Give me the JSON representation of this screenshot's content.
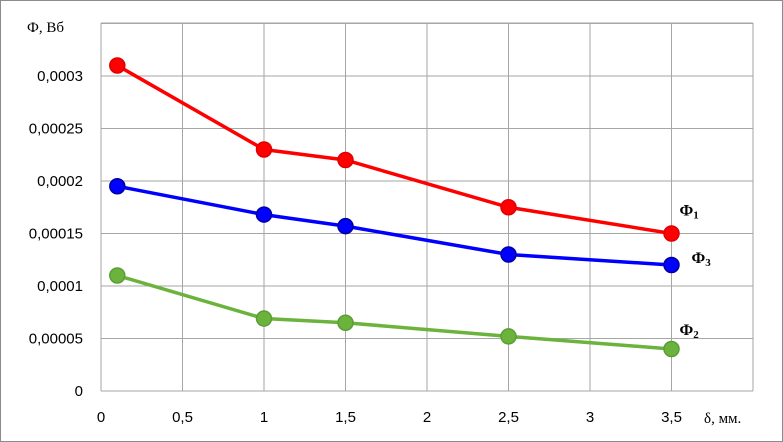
{
  "chart_data": {
    "type": "line",
    "ylabel": "Ф, Вб",
    "xlabel": "δ, мм.",
    "xlim": [
      0,
      4
    ],
    "ylim": [
      0,
      0.0003
    ],
    "x_ticks": [
      "0",
      "0,5",
      "1",
      "1,5",
      "2",
      "2,5",
      "3",
      "3,5"
    ],
    "y_ticks": [
      "0",
      "0,00005",
      "0,0001",
      "0,00015",
      "0,0002",
      "0,00025",
      "0,0003"
    ],
    "grid": true,
    "series": [
      {
        "name": "Ф1",
        "label_main": "Ф",
        "label_sub": "1",
        "color": "#ff0000",
        "marker_color": "#e00000",
        "x": [
          0.1,
          1,
          1.5,
          2.5,
          3.5
        ],
        "values": [
          0.00031,
          0.00023,
          0.00022,
          0.000175,
          0.00015
        ]
      },
      {
        "name": "Ф3",
        "label_main": "Ф",
        "label_sub": "3",
        "color": "#0000ff",
        "marker_color": "#0000a0",
        "x": [
          0.1,
          1,
          1.5,
          2.5,
          3.5
        ],
        "values": [
          0.000195,
          0.000168,
          0.000157,
          0.00013,
          0.00012
        ]
      },
      {
        "name": "Ф2",
        "label_main": "Ф",
        "label_sub": "2",
        "color": "#6cb33e",
        "marker_color": "#5a9e33",
        "x": [
          0.1,
          1,
          1.5,
          2.5,
          3.5
        ],
        "values": [
          0.00011,
          6.9e-05,
          6.5e-05,
          5.2e-05,
          4e-05
        ]
      }
    ]
  }
}
